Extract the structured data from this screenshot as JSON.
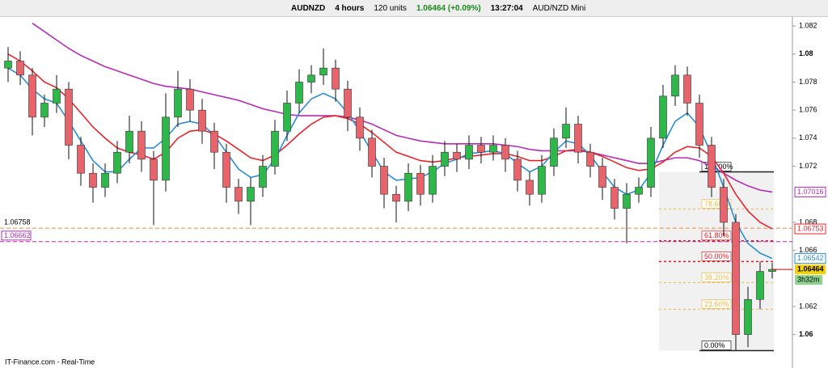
{
  "toolbar": {
    "symbol": "AUDNZD",
    "timeframe": "4 hours",
    "units": "120 units",
    "quote": "1.06464 (+0.09%)",
    "time": "13:27:04",
    "instrument": "AUD/NZD Mini"
  },
  "footer": "IT-Finance.com - Real-Time",
  "chart_data": {
    "type": "candlestick",
    "ylim": [
      1.0579,
      1.0827
    ],
    "yticks": [
      1.06,
      1.062,
      1.066,
      1.068,
      1.072,
      1.074,
      1.076,
      1.078,
      1.08,
      1.082
    ],
    "bold_ticks": [
      1.06,
      1.08
    ],
    "up_color": "#2fb84a",
    "down_color": "#e8646c",
    "open": [
      1.079,
      1.0795,
      1.0785,
      1.0755,
      1.0765,
      1.0775,
      1.0735,
      1.0715,
      1.0705,
      1.0715,
      1.073,
      1.0745,
      1.0725,
      1.071,
      1.0755,
      1.0775,
      1.076,
      1.0745,
      1.073,
      1.0705,
      1.0695,
      1.0705,
      1.072,
      1.0745,
      1.0765,
      1.078,
      1.0785,
      1.079,
      1.0775,
      1.0755,
      1.074,
      1.072,
      1.07,
      1.0695,
      1.0715,
      1.07,
      1.072,
      1.073,
      1.0725,
      1.0735,
      1.073,
      1.0735,
      1.0725,
      1.071,
      1.07,
      1.072,
      1.074,
      1.075,
      1.073,
      1.072,
      1.0705,
      1.069,
      1.07,
      1.0705,
      1.074,
      1.077,
      1.0785,
      1.0765,
      1.0735,
      1.0705,
      1.068,
      1.06,
      1.0625,
      1.0645
    ],
    "high": [
      1.0805,
      1.0802,
      1.079,
      1.0771,
      1.0785,
      1.078,
      1.0741,
      1.0722,
      1.0722,
      1.0738,
      1.0756,
      1.0752,
      1.0731,
      1.0772,
      1.0788,
      1.0782,
      1.0768,
      1.0751,
      1.0736,
      1.0711,
      1.0712,
      1.0728,
      1.0753,
      1.0774,
      1.0789,
      1.0792,
      1.0804,
      1.0796,
      1.0781,
      1.0762,
      1.0746,
      1.0726,
      1.0706,
      1.0722,
      1.0721,
      1.0728,
      1.0738,
      1.0736,
      1.0742,
      1.0741,
      1.0742,
      1.074,
      1.0731,
      1.0716,
      1.0728,
      1.0747,
      1.0762,
      1.0756,
      1.0736,
      1.0726,
      1.0711,
      1.0708,
      1.0712,
      1.0748,
      1.0778,
      1.0792,
      1.0791,
      1.0771,
      1.0741,
      1.0711,
      1.0686,
      1.0634,
      1.0652,
      1.0651
    ],
    "low": [
      1.078,
      1.0778,
      1.0742,
      1.0748,
      1.0758,
      1.0725,
      1.0706,
      1.0694,
      1.0698,
      1.0708,
      1.0722,
      1.0716,
      1.0678,
      1.0702,
      1.0748,
      1.0752,
      1.0736,
      1.0718,
      1.0694,
      1.0686,
      1.0678,
      1.0698,
      1.0714,
      1.0738,
      1.0758,
      1.0772,
      1.0778,
      1.0766,
      1.0745,
      1.0731,
      1.0712,
      1.069,
      1.068,
      1.0688,
      1.0692,
      1.0694,
      1.0713,
      1.0716,
      1.0718,
      1.0722,
      1.0724,
      1.0716,
      1.0702,
      1.0692,
      1.0694,
      1.0713,
      1.0733,
      1.0722,
      1.0712,
      1.0696,
      1.0682,
      1.0665,
      1.0694,
      1.0698,
      1.0733,
      1.0763,
      1.0756,
      1.0726,
      1.0698,
      1.067,
      1.0589,
      1.0591,
      1.0618,
      1.064
    ],
    "close": [
      1.0795,
      1.0785,
      1.0755,
      1.0765,
      1.0775,
      1.0735,
      1.0715,
      1.0705,
      1.0715,
      1.073,
      1.0745,
      1.0725,
      1.071,
      1.0755,
      1.0775,
      1.076,
      1.0745,
      1.073,
      1.0705,
      1.0695,
      1.0705,
      1.072,
      1.0745,
      1.0765,
      1.078,
      1.0785,
      1.079,
      1.0775,
      1.0755,
      1.074,
      1.072,
      1.07,
      1.0695,
      1.0715,
      1.07,
      1.072,
      1.073,
      1.0725,
      1.0735,
      1.073,
      1.0735,
      1.0725,
      1.071,
      1.07,
      1.072,
      1.074,
      1.075,
      1.073,
      1.072,
      1.0705,
      1.069,
      1.07,
      1.0705,
      1.074,
      1.077,
      1.0785,
      1.0765,
      1.0735,
      1.0705,
      1.068,
      1.06,
      1.0625,
      1.0645,
      1.06464
    ],
    "countdown": "3h32m",
    "lines": [
      {
        "color": "#b52cb5",
        "values": [
          null,
          null,
          1.0822,
          1.0816,
          1.081,
          1.0804,
          1.0799,
          1.0795,
          1.0791,
          1.0788,
          1.0785,
          1.0782,
          1.0779,
          1.0777,
          1.0776,
          1.0775,
          1.0773,
          1.0771,
          1.0769,
          1.0767,
          1.0764,
          1.0761,
          1.0759,
          1.0757,
          1.0756,
          1.0756,
          1.0756,
          1.0756,
          1.0755,
          1.0753,
          1.075,
          1.0746,
          1.0742,
          1.074,
          1.0738,
          1.0737,
          1.0736,
          1.0736,
          1.0736,
          1.0736,
          1.0736,
          1.0735,
          1.0734,
          1.0732,
          1.0731,
          1.0731,
          1.0731,
          1.0731,
          1.073,
          1.0728,
          1.0726,
          1.0724,
          1.0722,
          1.0722,
          1.0724,
          1.0726,
          1.0726,
          1.0724,
          1.072,
          1.0715,
          1.071,
          1.0706,
          1.0703,
          1.07016
        ]
      },
      {
        "color": "#e8262a",
        "values": [
          1.08,
          1.0795,
          1.0788,
          1.078,
          1.0776,
          1.0768,
          1.0758,
          1.0748,
          1.074,
          1.0733,
          1.073,
          1.0728,
          1.0725,
          1.073,
          1.074,
          1.0745,
          1.0746,
          1.0743,
          1.0738,
          1.0732,
          1.0726,
          1.0724,
          1.0728,
          1.0735,
          1.0743,
          1.075,
          1.0755,
          1.0756,
          1.0754,
          1.075,
          1.0744,
          1.0737,
          1.073,
          1.0727,
          1.0724,
          1.0723,
          1.0724,
          1.0726,
          1.0727,
          1.0728,
          1.0729,
          1.0729,
          1.0727,
          1.0724,
          1.0724,
          1.0727,
          1.0731,
          1.0732,
          1.073,
          1.0727,
          1.0723,
          1.0719,
          1.0717,
          1.0718,
          1.0723,
          1.073,
          1.0734,
          1.0733,
          1.0727,
          1.0715,
          1.07,
          1.0688,
          1.068,
          1.06753
        ]
      },
      {
        "color": "#2b8fd6",
        "values": [
          1.079,
          1.0785,
          1.0775,
          1.0768,
          1.0765,
          1.0752,
          1.0738,
          1.0724,
          1.0716,
          1.0716,
          1.0725,
          1.0733,
          1.0733,
          1.074,
          1.075,
          1.0752,
          1.075,
          1.0742,
          1.073,
          1.0718,
          1.0712,
          1.0714,
          1.0725,
          1.0742,
          1.0758,
          1.0768,
          1.0772,
          1.0768,
          1.0758,
          1.0745,
          1.073,
          1.0716,
          1.071,
          1.0711,
          1.0712,
          1.0716,
          1.0722,
          1.0725,
          1.0729,
          1.073,
          1.0731,
          1.0729,
          1.0722,
          1.0716,
          1.072,
          1.073,
          1.0738,
          1.0736,
          1.0728,
          1.0716,
          1.0705,
          1.07,
          1.0703,
          1.0715,
          1.0735,
          1.0752,
          1.0758,
          1.0748,
          1.0728,
          1.0705,
          1.068,
          1.0665,
          1.0658,
          1.06542
        ]
      }
    ],
    "hlines": [
      {
        "value": 1.06758,
        "color": "#f08a3c"
      },
      {
        "value": 1.06662,
        "color": "#b52cb5"
      }
    ],
    "fibonacci": [
      {
        "ratio": 100,
        "label": "100.00%",
        "price": 1.0716,
        "color": "#222222"
      },
      {
        "ratio": 78.6,
        "label": "78.60%",
        "price": 1.06895,
        "color": "#f4b740"
      },
      {
        "ratio": 61.8,
        "label": "61.80%",
        "price": 1.06668,
        "color": "#e01b22"
      },
      {
        "ratio": 50,
        "label": "50.00%",
        "price": 1.0652,
        "color": "#e01b22"
      },
      {
        "ratio": 38.2,
        "label": "38.20%",
        "price": 1.0637,
        "color": "#f4b740"
      },
      {
        "ratio": 23.6,
        "label": "23.60%",
        "price": 1.0618,
        "color": "#f4b740"
      },
      {
        "ratio": 0,
        "label": "0.00%",
        "price": 1.05885,
        "color": "#222222"
      }
    ]
  }
}
